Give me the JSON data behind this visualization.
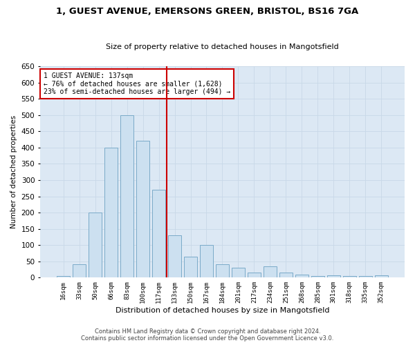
{
  "title_line1": "1, GUEST AVENUE, EMERSONS GREEN, BRISTOL, BS16 7GA",
  "title_line2": "Size of property relative to detached houses in Mangotsfield",
  "xlabel": "Distribution of detached houses by size in Mangotsfield",
  "ylabel": "Number of detached properties",
  "categories": [
    "16sqm",
    "33sqm",
    "50sqm",
    "66sqm",
    "83sqm",
    "100sqm",
    "117sqm",
    "133sqm",
    "150sqm",
    "167sqm",
    "184sqm",
    "201sqm",
    "217sqm",
    "234sqm",
    "251sqm",
    "268sqm",
    "285sqm",
    "301sqm",
    "318sqm",
    "335sqm",
    "352sqm"
  ],
  "values": [
    5,
    40,
    200,
    400,
    500,
    420,
    270,
    130,
    65,
    100,
    40,
    30,
    15,
    35,
    15,
    10,
    5,
    8,
    5,
    5,
    8
  ],
  "bar_color": "#cce0f0",
  "bar_edge_color": "#7aaac8",
  "vline_color": "#cc0000",
  "vline_index": 7,
  "annotation_text": "1 GUEST AVENUE: 137sqm\n← 76% of detached houses are smaller (1,628)\n23% of semi-detached houses are larger (494) →",
  "annotation_box_facecolor": "#ffffff",
  "annotation_box_edgecolor": "#cc0000",
  "grid_color": "#c8d8e8",
  "background_color": "#dce8f4",
  "ylim": [
    0,
    650
  ],
  "yticks": [
    0,
    50,
    100,
    150,
    200,
    250,
    300,
    350,
    400,
    450,
    500,
    550,
    600,
    650
  ],
  "footer_line1": "Contains HM Land Registry data © Crown copyright and database right 2024.",
  "footer_line2": "Contains public sector information licensed under the Open Government Licence v3.0."
}
